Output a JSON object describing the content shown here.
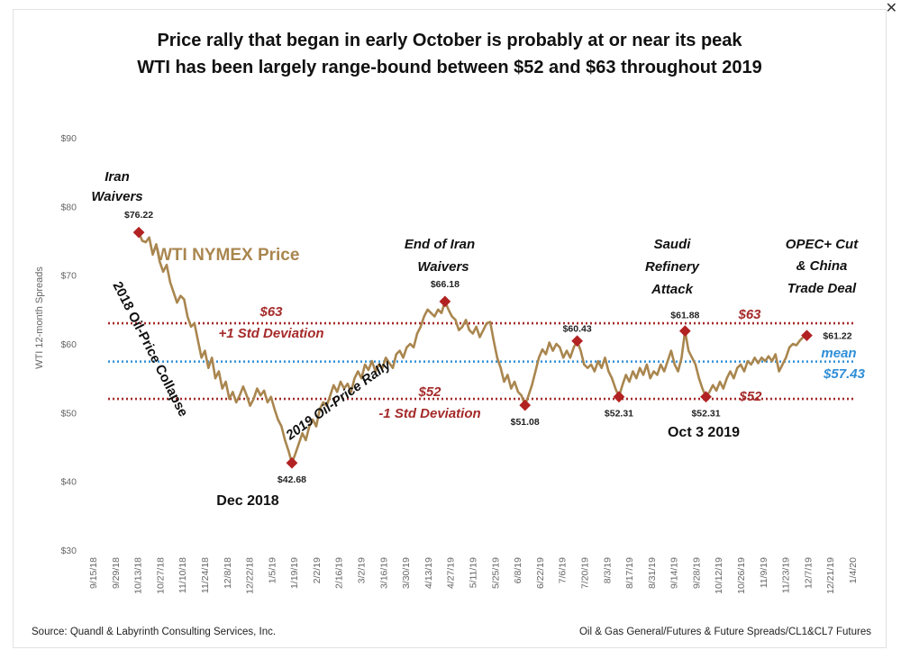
{
  "window": {
    "close_label": "✕",
    "close_icon": "close-icon"
  },
  "colors": {
    "price": "#a9864f",
    "band": "#a52a2a",
    "mean": "#2f8fd8",
    "marker": "#b22222",
    "text": "#111111",
    "axis": "#777777"
  },
  "chart_data": {
    "type": "line",
    "title": "Price rally that began in early October is probably at or near its peak",
    "subtitle": "WTI has been largely range-bound between $52 and $63 throughout 2019",
    "ylabel": "WTI 12-month Spreads",
    "xlabel": "",
    "ylim": [
      30,
      90
    ],
    "yticks": [
      "$90",
      "$80",
      "$70",
      "$60",
      "$50",
      "$40",
      "$30"
    ],
    "ytick_values": [
      90,
      80,
      70,
      60,
      50,
      40,
      30
    ],
    "xticks": [
      "9/15/18",
      "9/29/18",
      "10/13/18",
      "10/27/18",
      "11/10/18",
      "11/24/18",
      "12/8/18",
      "12/22/18",
      "1/5/19",
      "1/19/19",
      "2/2/19",
      "2/16/19",
      "3/2/19",
      "3/16/19",
      "3/30/19",
      "4/13/19",
      "4/27/19",
      "5/11/19",
      "5/25/19",
      "6/8/19",
      "6/22/19",
      "7/6/19",
      "7/20/19",
      "8/3/19",
      "8/17/19",
      "8/31/19",
      "9/14/19",
      "9/28/19",
      "10/12/19",
      "10/26/19",
      "11/9/19",
      "11/23/19",
      "12/7/19",
      "12/21/19",
      "1/4/20"
    ],
    "series": [
      {
        "name": "WTI NYMEX Price",
        "points": [
          [
            14,
            76.22
          ],
          [
            15,
            75.0
          ],
          [
            16,
            74.8
          ],
          [
            17,
            75.5
          ],
          [
            18,
            73.0
          ],
          [
            19,
            74.5
          ],
          [
            20,
            72.0
          ],
          [
            21,
            70.5
          ],
          [
            22,
            71.5
          ],
          [
            23,
            69.0
          ],
          [
            24,
            67.5
          ],
          [
            25,
            66.0
          ],
          [
            26,
            67.0
          ],
          [
            27,
            66.5
          ],
          [
            28,
            64.0
          ],
          [
            29,
            62.5
          ],
          [
            30,
            63.0
          ],
          [
            31,
            60.5
          ],
          [
            32,
            58.0
          ],
          [
            33,
            59.0
          ],
          [
            34,
            56.5
          ],
          [
            35,
            58.0
          ],
          [
            36,
            55.0
          ],
          [
            37,
            56.0
          ],
          [
            38,
            53.5
          ],
          [
            39,
            54.5
          ],
          [
            40,
            52.0
          ],
          [
            41,
            53.0
          ],
          [
            42,
            51.5
          ],
          [
            43,
            52.5
          ],
          [
            44,
            53.8
          ],
          [
            45,
            52.5
          ],
          [
            46,
            51.0
          ],
          [
            47,
            52.0
          ],
          [
            48,
            53.5
          ],
          [
            49,
            52.5
          ],
          [
            50,
            53.2
          ],
          [
            51,
            51.5
          ],
          [
            52,
            52.3
          ],
          [
            53,
            50.5
          ],
          [
            54,
            49.0
          ],
          [
            55,
            48.0
          ],
          [
            56,
            46.0
          ],
          [
            57,
            44.5
          ],
          [
            58,
            42.68
          ],
          [
            59,
            44.0
          ],
          [
            60,
            45.5
          ],
          [
            61,
            47.0
          ],
          [
            62,
            46.0
          ],
          [
            63,
            48.0
          ],
          [
            64,
            49.0
          ],
          [
            65,
            48.0
          ],
          [
            66,
            50.5
          ],
          [
            67,
            51.5
          ],
          [
            68,
            51.0
          ],
          [
            69,
            52.5
          ],
          [
            70,
            54.0
          ],
          [
            71,
            53.0
          ],
          [
            72,
            54.5
          ],
          [
            73,
            53.5
          ],
          [
            74,
            54.2
          ],
          [
            75,
            53.0
          ],
          [
            76,
            55.0
          ],
          [
            77,
            56.0
          ],
          [
            78,
            55.0
          ],
          [
            79,
            57.0
          ],
          [
            80,
            56.2
          ],
          [
            81,
            57.5
          ],
          [
            82,
            56.0
          ],
          [
            83,
            57.0
          ],
          [
            84,
            56.5
          ],
          [
            85,
            58.0
          ],
          [
            86,
            57.2
          ],
          [
            87,
            56.5
          ],
          [
            88,
            58.5
          ],
          [
            89,
            59.0
          ],
          [
            90,
            58.0
          ],
          [
            91,
            59.5
          ],
          [
            92,
            60.0
          ],
          [
            93,
            59.5
          ],
          [
            94,
            61.5
          ],
          [
            95,
            62.5
          ],
          [
            96,
            64.0
          ],
          [
            97,
            65.0
          ],
          [
            98,
            64.5
          ],
          [
            99,
            64.0
          ],
          [
            100,
            65.0
          ],
          [
            101,
            64.5
          ],
          [
            102,
            66.18
          ],
          [
            103,
            65.0
          ],
          [
            104,
            64.0
          ],
          [
            105,
            63.5
          ],
          [
            106,
            62.0
          ],
          [
            107,
            62.5
          ],
          [
            108,
            63.5
          ],
          [
            109,
            62.0
          ],
          [
            110,
            61.5
          ],
          [
            111,
            62.5
          ],
          [
            112,
            61.0
          ],
          [
            113,
            62.0
          ],
          [
            114,
            63.0
          ],
          [
            115,
            63.2
          ],
          [
            116,
            60.5
          ],
          [
            117,
            58.0
          ],
          [
            118,
            56.5
          ],
          [
            119,
            54.5
          ],
          [
            120,
            55.5
          ],
          [
            121,
            53.5
          ],
          [
            122,
            54.5
          ],
          [
            123,
            53.0
          ],
          [
            124,
            52.5
          ],
          [
            125,
            51.08
          ],
          [
            126,
            52.5
          ],
          [
            127,
            54.0
          ],
          [
            128,
            56.0
          ],
          [
            129,
            58.0
          ],
          [
            130,
            59.2
          ],
          [
            131,
            58.5
          ],
          [
            132,
            60.2
          ],
          [
            133,
            59.0
          ],
          [
            134,
            60.0
          ],
          [
            135,
            59.5
          ],
          [
            136,
            58.0
          ],
          [
            137,
            59.0
          ],
          [
            138,
            58.0
          ],
          [
            139,
            59.5
          ],
          [
            140,
            60.43
          ],
          [
            141,
            59.0
          ],
          [
            142,
            57.0
          ],
          [
            143,
            56.5
          ],
          [
            144,
            57.0
          ],
          [
            145,
            56.0
          ],
          [
            146,
            57.5
          ],
          [
            147,
            56.5
          ],
          [
            148,
            58.0
          ],
          [
            149,
            56.0
          ],
          [
            150,
            55.0
          ],
          [
            151,
            53.5
          ],
          [
            152,
            52.31
          ],
          [
            153,
            54.0
          ],
          [
            154,
            55.5
          ],
          [
            155,
            54.5
          ],
          [
            156,
            56.0
          ],
          [
            157,
            55.0
          ],
          [
            158,
            56.5
          ],
          [
            159,
            55.5
          ],
          [
            160,
            57.0
          ],
          [
            161,
            55.0
          ],
          [
            162,
            56.0
          ],
          [
            163,
            55.5
          ],
          [
            164,
            57.0
          ],
          [
            165,
            56.0
          ],
          [
            166,
            57.5
          ],
          [
            167,
            59.0
          ],
          [
            168,
            57.0
          ],
          [
            169,
            56.0
          ],
          [
            170,
            58.0
          ],
          [
            171,
            61.88
          ],
          [
            172,
            59.0
          ],
          [
            173,
            58.0
          ],
          [
            174,
            57.0
          ],
          [
            175,
            55.0
          ],
          [
            176,
            53.5
          ],
          [
            177,
            52.31
          ],
          [
            178,
            53.0
          ],
          [
            179,
            54.0
          ],
          [
            180,
            53.2
          ],
          [
            181,
            54.5
          ],
          [
            182,
            53.5
          ],
          [
            183,
            55.0
          ],
          [
            184,
            56.0
          ],
          [
            185,
            55.0
          ],
          [
            186,
            56.5
          ],
          [
            187,
            57.0
          ],
          [
            188,
            56.0
          ],
          [
            189,
            57.5
          ],
          [
            190,
            57.0
          ],
          [
            191,
            58.0
          ],
          [
            192,
            57.2
          ],
          [
            193,
            58.0
          ],
          [
            194,
            57.5
          ],
          [
            195,
            58.2
          ],
          [
            196,
            57.5
          ],
          [
            197,
            58.5
          ],
          [
            198,
            56.0
          ],
          [
            199,
            57.0
          ],
          [
            200,
            58.0
          ],
          [
            201,
            59.5
          ],
          [
            202,
            60.0
          ],
          [
            203,
            59.8
          ],
          [
            204,
            60.5
          ],
          [
            205,
            61.0
          ],
          [
            206,
            61.22
          ]
        ]
      }
    ],
    "x_domain": [
      0,
      224
    ],
    "reference_lines": [
      {
        "name": "upper-band-line",
        "value": 63,
        "style": "dotted",
        "color": "#a52a2a"
      },
      {
        "name": "mean-line",
        "value": 57.43,
        "style": "dotted",
        "color": "#2f8fd8"
      },
      {
        "name": "lower-band-line",
        "value": 52,
        "style": "dotted",
        "color": "#a52a2a"
      }
    ],
    "markers": [
      {
        "x": 14,
        "y": 76.22,
        "label": "$76.22"
      },
      {
        "x": 58,
        "y": 42.68,
        "label": "$42.68"
      },
      {
        "x": 102,
        "y": 66.18,
        "label": "$66.18"
      },
      {
        "x": 125,
        "y": 51.08,
        "label": "$51.08"
      },
      {
        "x": 140,
        "y": 60.43,
        "label": "$60.43"
      },
      {
        "x": 152,
        "y": 52.31,
        "label": "$52.31"
      },
      {
        "x": 171,
        "y": 61.88,
        "label": "$61.88"
      },
      {
        "x": 177,
        "y": 52.31,
        "label": "$52.31"
      },
      {
        "x": 206,
        "y": 61.22,
        "label": "$61.22"
      }
    ],
    "annotations": {
      "iran_waivers": [
        "Iran",
        "Waivers"
      ],
      "legend_label": "WTI NYMEX Price",
      "collapse": "2018 Oil-Price Collapse",
      "rally": "2019 Oil-Price Rally",
      "dec_2018": "Dec 2018",
      "end_iran": [
        "End of Iran",
        "Waivers"
      ],
      "saudi": [
        "Saudi",
        "Refinery",
        "Attack"
      ],
      "opec": [
        "OPEC+ Cut",
        "& China",
        "Trade Deal"
      ],
      "band_63": "$63",
      "band_63_right": "$63",
      "plus_std": "+1 Std Deviation",
      "band_52": "$52",
      "band_52_right": "$52",
      "minus_std": "-1 Std Deviation",
      "mean_word": "mean",
      "mean_value": "$57.43",
      "oct_2019": "Oct 3 2019"
    },
    "footer_left": "Source: Quandl & Labyrinth Consulting Services, Inc.",
    "footer_right": "Oil & Gas General/Futures & Future Spreads/CL1&CL7 Futures"
  }
}
